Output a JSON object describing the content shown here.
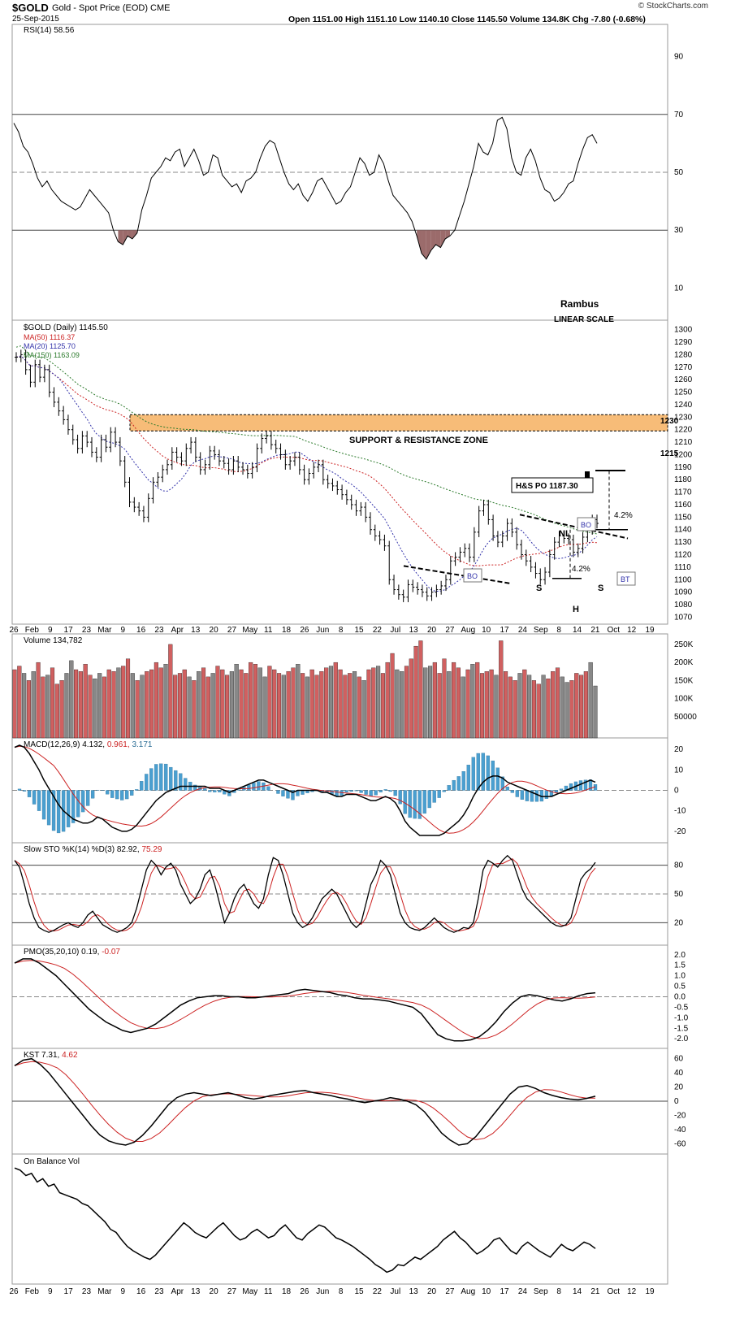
{
  "header": {
    "symbol": "$GOLD",
    "name": "Gold - Spot Price (EOD)",
    "exchange": "CME",
    "date": "25-Sep-2015",
    "ohlc": "Open 1151.00  High 1151.10  Low 1140.10  Close 1145.50  Volume 134.8K  Chg -7.80 (-0.68%)",
    "brand": "© StockCharts.com"
  },
  "colors": {
    "bull": "#d06060",
    "bear": "#888888",
    "ma50": "#cc2222",
    "ma20": "#3333aa",
    "ma150": "#2b7a2b",
    "macdHist": "#4a9fd0",
    "rsiFill": "#9b6b6b",
    "zone": "#f7bc78"
  },
  "annotations": {
    "author": "Rambus",
    "scale": "LINEAR SCALE",
    "zone": "SUPPORT & RESISTANCE ZONE",
    "lvl1230": "1230",
    "lvl1215": "1215",
    "po": "H&S PO 1187.30",
    "nl": "NL",
    "bo1": "BO",
    "bo2": "BO",
    "bt": "BT",
    "pct1": "4.2%",
    "pct2": "4.2%",
    "s1": "S",
    "h": "H",
    "s2": "S"
  },
  "chart_data": [
    {
      "panel": "rsi",
      "type": "line",
      "title": "RSI(14)",
      "value": "58.56",
      "yticks": [
        "90",
        "70",
        "50",
        "30",
        "10"
      ],
      "ylim": [
        0,
        100
      ],
      "levels": [
        70,
        50,
        30
      ],
      "values": [
        67,
        64,
        59,
        57,
        53,
        48,
        45,
        47,
        44,
        42,
        40,
        39,
        38,
        37,
        38,
        41,
        44,
        42,
        40,
        38,
        36,
        30,
        26,
        25,
        28,
        27,
        29,
        37,
        42,
        48,
        50,
        52,
        55,
        54,
        57,
        58,
        52,
        55,
        58,
        54,
        49,
        50,
        56,
        55,
        49,
        47,
        45,
        46,
        43,
        47,
        48,
        50,
        55,
        59,
        61,
        60,
        55,
        50,
        46,
        44,
        46,
        42,
        40,
        43,
        47,
        48,
        45,
        42,
        39,
        40,
        43,
        45,
        50,
        55,
        53,
        49,
        50,
        56,
        53,
        47,
        42,
        40,
        38,
        36,
        33,
        28,
        22,
        20,
        23,
        25,
        24,
        27,
        28,
        30,
        35,
        40,
        46,
        52,
        60,
        57,
        56,
        60,
        68,
        69,
        65,
        55,
        50,
        49,
        55,
        58,
        54,
        48,
        44,
        43,
        40,
        41,
        43,
        46,
        47,
        53,
        58,
        62,
        63,
        60
      ]
    },
    {
      "panel": "price",
      "type": "ohlc",
      "title": "$GOLD (Daily)",
      "value": "1145.50",
      "series": [
        {
          "name": "MA(50)",
          "value": "1116.37"
        },
        {
          "name": "MA(20)",
          "value": "1125.70"
        },
        {
          "name": "MA(150)",
          "value": "1163.09"
        }
      ],
      "yticks": [
        "1300",
        "1290",
        "1280",
        "1270",
        "1260",
        "1250",
        "1240",
        "1230",
        "1220",
        "1210",
        "1200",
        "1190",
        "1180",
        "1170",
        "1160",
        "1150",
        "1140",
        "1130",
        "1120",
        "1110",
        "1100",
        "1090",
        "1080",
        "1070"
      ],
      "ylim": [
        1067,
        1305
      ],
      "xticks": [
        "26",
        "Feb",
        "9",
        "17",
        "23",
        "Mar",
        "9",
        "16",
        "23",
        "Apr",
        "13",
        "20",
        "27",
        "May",
        "11",
        "18",
        "26",
        "Jun",
        "8",
        "15",
        "22",
        "Jul",
        "13",
        "20",
        "27",
        "Aug",
        "10",
        "17",
        "24",
        "Sep",
        "8",
        "14",
        "21",
        "Oct",
        "12",
        "19"
      ],
      "close": [
        1278,
        1280,
        1268,
        1258,
        1272,
        1262,
        1268,
        1250,
        1242,
        1235,
        1228,
        1220,
        1212,
        1205,
        1215,
        1210,
        1202,
        1198,
        1212,
        1206,
        1218,
        1210,
        1195,
        1178,
        1162,
        1158,
        1155,
        1150,
        1165,
        1178,
        1182,
        1188,
        1192,
        1202,
        1198,
        1195,
        1205,
        1210,
        1198,
        1188,
        1192,
        1203,
        1200,
        1195,
        1193,
        1188,
        1195,
        1190,
        1188,
        1185,
        1190,
        1205,
        1213,
        1215,
        1208,
        1205,
        1200,
        1192,
        1195,
        1198,
        1188,
        1180,
        1185,
        1190,
        1192,
        1180,
        1177,
        1175,
        1172,
        1168,
        1164,
        1160,
        1155,
        1158,
        1150,
        1140,
        1135,
        1132,
        1127,
        1100,
        1092,
        1088,
        1086,
        1096,
        1094,
        1092,
        1090,
        1087,
        1090,
        1092,
        1095,
        1100,
        1115,
        1118,
        1122,
        1125,
        1118,
        1138,
        1155,
        1160,
        1148,
        1135,
        1130,
        1135,
        1145,
        1138,
        1128,
        1120,
        1115,
        1110,
        1105,
        1100,
        1106,
        1120,
        1130,
        1135,
        1133,
        1132,
        1122,
        1125,
        1134,
        1140,
        1148,
        1145
      ],
      "annotation_levels": {
        "zone": [
          1219,
          1232
        ],
        "po": 1187.3
      }
    },
    {
      "panel": "volume",
      "type": "bar",
      "title": "Volume",
      "value": "134,782",
      "yticks": [
        "250K",
        "200K",
        "150K",
        "100K",
        "50000"
      ],
      "ylim": [
        0,
        270000
      ],
      "values": [
        180,
        190,
        170,
        150,
        175,
        200,
        160,
        165,
        185,
        140,
        150,
        170,
        205,
        180,
        175,
        195,
        165,
        155,
        170,
        160,
        180,
        175,
        185,
        190,
        210,
        170,
        150,
        165,
        175,
        180,
        200,
        185,
        195,
        250,
        165,
        170,
        180,
        160,
        150,
        175,
        185,
        160,
        170,
        190,
        180,
        165,
        175,
        195,
        180,
        170,
        200,
        195,
        185,
        160,
        190,
        180,
        170,
        165,
        175,
        185,
        195,
        170,
        160,
        180,
        165,
        175,
        185,
        190,
        200,
        180,
        165,
        170,
        175,
        160,
        150,
        180,
        185,
        190,
        170,
        200,
        225,
        180,
        175,
        190,
        210,
        245,
        260,
        185,
        190,
        200,
        170,
        210,
        175,
        200,
        185,
        160,
        180,
        195,
        200,
        170,
        175,
        180,
        165,
        260,
        175,
        160,
        150,
        170,
        180,
        165,
        150,
        140,
        165,
        155,
        175,
        185,
        160,
        145,
        150,
        170,
        165,
        175,
        200,
        135
      ]
    },
    {
      "panel": "macd",
      "type": "line",
      "title": "MACD(12,26,9)",
      "values_text": [
        "4.132",
        "0.961",
        "3.171"
      ],
      "yticks": [
        "20",
        "10",
        "0",
        "-10",
        "-20"
      ],
      "ylim": [
        -24,
        24
      ],
      "macd": [
        21,
        22,
        21,
        18,
        14,
        10,
        5,
        1,
        -3,
        -7,
        -10,
        -12,
        -14,
        -15,
        -16,
        -16,
        -15,
        -13,
        -14,
        -16,
        -18,
        -19,
        -20,
        -20,
        -19,
        -17,
        -14,
        -11,
        -8,
        -5,
        -3,
        -1,
        0,
        1,
        2,
        2,
        2,
        2,
        2,
        2,
        1,
        1,
        1,
        0,
        -1,
        0,
        1,
        2,
        3,
        4,
        5,
        5,
        4,
        3,
        2,
        1,
        0,
        -1,
        0,
        0,
        0,
        0,
        0,
        -1,
        -1,
        -2,
        -3,
        -3,
        -2,
        -2,
        -2,
        -3,
        -4,
        -5,
        -5,
        -4,
        -3,
        -4,
        -6,
        -10,
        -15,
        -18,
        -20,
        -22,
        -22,
        -22,
        -22,
        -22,
        -21,
        -19,
        -17,
        -15,
        -12,
        -8,
        -3,
        1,
        4,
        6,
        7,
        7,
        6,
        4,
        3,
        2,
        1,
        0,
        -1,
        -2,
        -3,
        -3,
        -3,
        -2,
        -1,
        0,
        1,
        2,
        3,
        4,
        5,
        4
      ]
    },
    {
      "panel": "sto",
      "type": "line",
      "title": "Slow STO %K(14) %D(3)",
      "values_text": [
        "82.92",
        "75.29"
      ],
      "yticks": [
        "80",
        "50",
        "20"
      ],
      "ylim": [
        0,
        100
      ],
      "levels": [
        80,
        50,
        20
      ],
      "k": [
        85,
        78,
        60,
        40,
        25,
        15,
        12,
        10,
        12,
        15,
        18,
        20,
        17,
        15,
        20,
        28,
        32,
        25,
        18,
        15,
        12,
        10,
        12,
        15,
        20,
        35,
        55,
        75,
        85,
        80,
        70,
        78,
        82,
        75,
        60,
        50,
        40,
        45,
        55,
        70,
        75,
        60,
        40,
        20,
        30,
        45,
        55,
        60,
        50,
        40,
        35,
        45,
        70,
        88,
        85,
        70,
        50,
        30,
        20,
        15,
        18,
        25,
        35,
        45,
        50,
        55,
        50,
        40,
        30,
        20,
        15,
        20,
        40,
        60,
        70,
        85,
        80,
        70,
        50,
        30,
        20,
        15,
        13,
        12,
        15,
        20,
        25,
        20,
        15,
        12,
        10,
        12,
        15,
        14,
        20,
        45,
        75,
        85,
        82,
        78,
        85,
        90,
        85,
        70,
        55,
        45,
        40,
        35,
        30,
        25,
        20,
        17,
        16,
        18,
        25,
        45,
        65,
        72,
        76,
        83
      ]
    },
    {
      "panel": "pmo",
      "type": "line",
      "title": "PMO(35,20,10)",
      "values_text": [
        "0.19",
        "-0.07"
      ],
      "yticks": [
        "2.0",
        "1.5",
        "1.0",
        "0.5",
        "0.0",
        "-0.5",
        "-1.0",
        "-1.5",
        "-2.0"
      ],
      "ylim": [
        -2.3,
        2.3
      ],
      "pmo": [
        1.6,
        1.8,
        1.8,
        1.6,
        1.3,
        1.0,
        0.6,
        0.2,
        -0.2,
        -0.6,
        -0.9,
        -1.2,
        -1.4,
        -1.6,
        -1.7,
        -1.6,
        -1.5,
        -1.3,
        -1.0,
        -0.7,
        -0.4,
        -0.2,
        -0.05,
        0.0,
        0.05,
        0.05,
        0.0,
        0.0,
        -0.05,
        -0.05,
        0.0,
        0.05,
        0.1,
        0.15,
        0.3,
        0.35,
        0.3,
        0.25,
        0.2,
        0.1,
        0.05,
        -0.05,
        -0.1,
        -0.1,
        -0.15,
        -0.2,
        -0.3,
        -0.4,
        -0.5,
        -0.8,
        -1.3,
        -1.8,
        -2.0,
        -2.1,
        -2.1,
        -2.05,
        -1.9,
        -1.6,
        -1.2,
        -0.7,
        -0.3,
        0.0,
        0.1,
        0.05,
        -0.05,
        -0.15,
        -0.2,
        -0.1,
        0.05,
        0.15,
        0.19
      ]
    },
    {
      "panel": "kst",
      "type": "line",
      "title": "KST",
      "values_text": [
        "7.31",
        "4.62"
      ],
      "yticks": [
        "60",
        "40",
        "20",
        "0",
        "-20",
        "-40",
        "-60"
      ],
      "ylim": [
        -70,
        70
      ],
      "kst": [
        50,
        58,
        60,
        52,
        40,
        25,
        10,
        -5,
        -20,
        -35,
        -48,
        -56,
        -60,
        -62,
        -58,
        -48,
        -35,
        -20,
        -5,
        5,
        10,
        12,
        10,
        8,
        10,
        12,
        9,
        5,
        3,
        5,
        8,
        10,
        12,
        14,
        15,
        12,
        10,
        8,
        5,
        3,
        0,
        -2,
        0,
        2,
        5,
        3,
        0,
        -5,
        -15,
        -30,
        -45,
        -55,
        -62,
        -60,
        -50,
        -35,
        -20,
        -5,
        10,
        20,
        22,
        18,
        12,
        8,
        5,
        3,
        2,
        4,
        7
      ]
    },
    {
      "panel": "obv",
      "type": "line",
      "title": "On Balance Vol",
      "values": [
        95,
        93,
        88,
        90,
        82,
        85,
        78,
        80,
        72,
        70,
        68,
        66,
        62,
        60,
        55,
        50,
        45,
        38,
        35,
        28,
        22,
        18,
        15,
        12,
        10,
        14,
        20,
        26,
        32,
        38,
        44,
        40,
        35,
        32,
        30,
        35,
        40,
        44,
        38,
        32,
        28,
        30,
        35,
        38,
        34,
        30,
        32,
        38,
        42,
        36,
        30,
        28,
        34,
        38,
        42,
        40,
        35,
        30,
        28,
        25,
        22,
        18,
        14,
        10,
        5,
        2,
        -2,
        0,
        5,
        4,
        8,
        12,
        10,
        14,
        18,
        22,
        28,
        32,
        36,
        30,
        26,
        20,
        15,
        18,
        22,
        28,
        30,
        24,
        18,
        15,
        22,
        26,
        22,
        18,
        15,
        12,
        18,
        24,
        20,
        18,
        22,
        26,
        24,
        20
      ]
    }
  ]
}
